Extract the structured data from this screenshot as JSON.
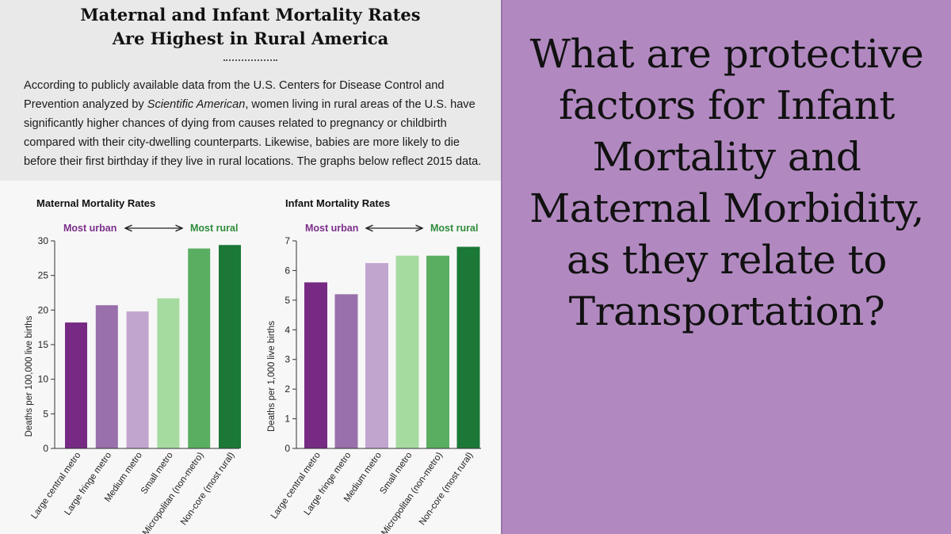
{
  "infographic": {
    "title_line1": "Maternal and Infant Mortality Rates",
    "title_line2": "Are Highest in Rural America",
    "intro_before": "According to publicly available data from the U.S. Centers for Disease Control and Prevention analyzed by ",
    "intro_source": "Scientific American",
    "intro_after": ", women living in rural areas of the U.S. have significantly higher chances of dying from causes related to pregnancy or childbirth compared with their city-dwelling counterparts. Likewise, babies are more likely to die before their first birthday if they live in rural locations. The graphs below reflect 2015 data."
  },
  "question": {
    "text": "What are protective factors for Infant Mortality and Maternal Morbidity, as they relate to Transportation?"
  },
  "colors": {
    "urban_label": "#7b2f8a",
    "rural_label": "#2e8b3a",
    "bars": [
      "#762a83",
      "#9970ab",
      "#c2a5cf",
      "#a6dba0",
      "#5aae61",
      "#1b7837"
    ]
  },
  "chart_data": [
    {
      "type": "bar",
      "title": "Maternal Mortality Rates",
      "ylabel": "Deaths per 100,000 live births",
      "xlabel": "",
      "categories": [
        "Large central metro",
        "Large fringe metro",
        "Medium metro",
        "Small metro",
        "Micropolitan (non-metro)",
        "Non-core (most rural)"
      ],
      "values": [
        18.2,
        20.7,
        19.8,
        21.7,
        28.9,
        29.4
      ],
      "ylim": [
        0,
        30
      ],
      "yticks": [
        0,
        5,
        10,
        15,
        20,
        25,
        30
      ],
      "legend_urban": "Most urban",
      "legend_rural": "Most rural",
      "grid": false
    },
    {
      "type": "bar",
      "title": "Infant Mortality Rates",
      "ylabel": "Deaths per 1,000 live births",
      "xlabel": "",
      "categories": [
        "Large central metro",
        "Large fringe metro",
        "Medium metro",
        "Small metro",
        "Micropolitan (non-metro)",
        "Non-core (most rural)"
      ],
      "values": [
        5.6,
        5.2,
        6.25,
        6.5,
        6.5,
        6.8
      ],
      "ylim": [
        0,
        7
      ],
      "yticks": [
        0,
        1,
        2,
        3,
        4,
        5,
        6,
        7
      ],
      "legend_urban": "Most urban",
      "legend_rural": "Most rural",
      "grid": false
    }
  ]
}
